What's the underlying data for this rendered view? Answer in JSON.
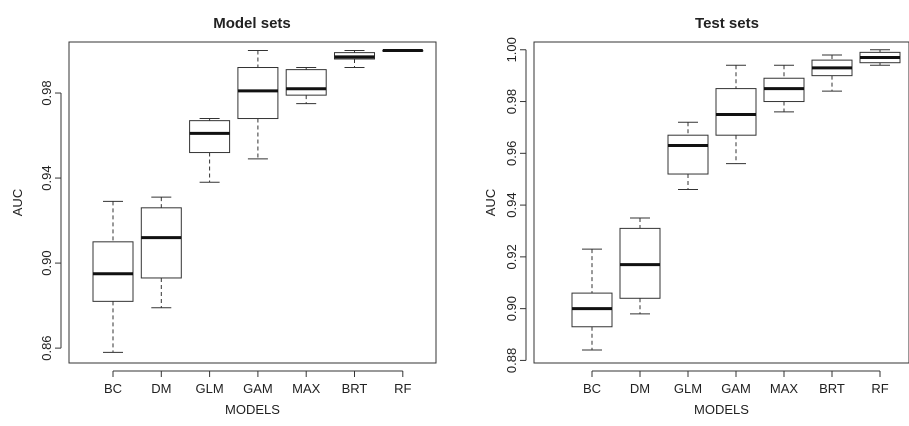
{
  "chart_data": [
    {
      "type": "box",
      "title": "Model sets",
      "xlabel": "MODELS",
      "ylabel": "AUC",
      "categories": [
        "BC",
        "DM",
        "GLM",
        "GAM",
        "MAX",
        "BRT",
        "RF"
      ],
      "ylim": [
        0.853,
        1.004
      ],
      "yticks": [
        0.86,
        0.9,
        0.94,
        0.98
      ],
      "ytick_labels": [
        "0.86",
        "0.90",
        "0.94",
        "0.98"
      ],
      "boxes": [
        {
          "whisker_low": 0.858,
          "q1": 0.882,
          "median": 0.895,
          "q3": 0.91,
          "whisker_high": 0.929
        },
        {
          "whisker_low": 0.879,
          "q1": 0.893,
          "median": 0.912,
          "q3": 0.926,
          "whisker_high": 0.931
        },
        {
          "whisker_low": 0.938,
          "q1": 0.952,
          "median": 0.961,
          "q3": 0.967,
          "whisker_high": 0.968
        },
        {
          "whisker_low": 0.949,
          "q1": 0.968,
          "median": 0.981,
          "q3": 0.992,
          "whisker_high": 1.0
        },
        {
          "whisker_low": 0.975,
          "q1": 0.979,
          "median": 0.982,
          "q3": 0.991,
          "whisker_high": 0.992
        },
        {
          "whisker_low": 0.992,
          "q1": 0.996,
          "median": 0.997,
          "q3": 0.999,
          "whisker_high": 1.0
        },
        {
          "whisker_low": 1.0,
          "q1": 1.0,
          "median": 1.0,
          "q3": 1.0,
          "whisker_high": 1.0
        }
      ]
    },
    {
      "type": "box",
      "title": "Test sets",
      "xlabel": "MODELS",
      "ylabel": "AUC",
      "categories": [
        "BC",
        "DM",
        "GLM",
        "GAM",
        "MAX",
        "BRT",
        "RF"
      ],
      "ylim": [
        0.879,
        1.003
      ],
      "yticks": [
        0.88,
        0.9,
        0.92,
        0.94,
        0.96,
        0.98,
        1.0
      ],
      "ytick_labels": [
        "0.88",
        "0.90",
        "0.92",
        "0.94",
        "0.96",
        "0.98",
        "1.00"
      ],
      "boxes": [
        {
          "whisker_low": 0.884,
          "q1": 0.893,
          "median": 0.9,
          "q3": 0.906,
          "whisker_high": 0.923
        },
        {
          "whisker_low": 0.898,
          "q1": 0.904,
          "median": 0.917,
          "q3": 0.931,
          "whisker_high": 0.935
        },
        {
          "whisker_low": 0.946,
          "q1": 0.952,
          "median": 0.963,
          "q3": 0.967,
          "whisker_high": 0.972
        },
        {
          "whisker_low": 0.956,
          "q1": 0.967,
          "median": 0.975,
          "q3": 0.985,
          "whisker_high": 0.994
        },
        {
          "whisker_low": 0.976,
          "q1": 0.98,
          "median": 0.985,
          "q3": 0.989,
          "whisker_high": 0.994
        },
        {
          "whisker_low": 0.984,
          "q1": 0.99,
          "median": 0.993,
          "q3": 0.996,
          "whisker_high": 0.998
        },
        {
          "whisker_low": 0.994,
          "q1": 0.995,
          "median": 0.997,
          "q3": 0.999,
          "whisker_high": 1.0
        }
      ]
    }
  ]
}
